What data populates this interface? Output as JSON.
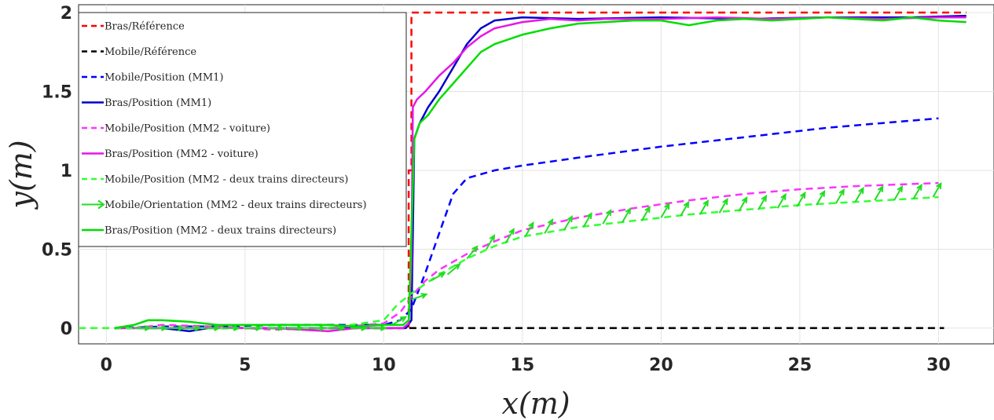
{
  "chart_data": {
    "type": "line",
    "title": "",
    "xlabel": "x(m)",
    "ylabel": "y(m)",
    "xlim": [
      -1,
      32
    ],
    "ylim": [
      -0.1,
      2.05
    ],
    "xticks": [
      0,
      5,
      10,
      15,
      20,
      25,
      30
    ],
    "yticks": [
      0,
      0.5,
      1,
      1.5,
      2
    ],
    "xtick_labels": [
      "0",
      "5",
      "10",
      "15",
      "20",
      "25",
      "30"
    ],
    "ytick_labels": [
      "0",
      "0.5",
      "1",
      "1.5",
      "2"
    ],
    "grid": true,
    "legend_position": "top-left",
    "series": [
      {
        "name": "Bras/Référence",
        "color": "#ff0000",
        "style": "dashed",
        "kind": "line",
        "x": [
          0.3,
          10.9,
          10.9,
          11.0,
          11.0,
          31.0
        ],
        "y": [
          0.0,
          0.0,
          1.0,
          1.0,
          2.0,
          2.0
        ]
      },
      {
        "name": "Mobile/Référence",
        "color": "#000000",
        "style": "dashed",
        "kind": "line",
        "x": [
          0.3,
          30.2
        ],
        "y": [
          0.0,
          0.0
        ]
      },
      {
        "name": "Mobile/Position (MM1)",
        "color": "#0000ff",
        "style": "dashed",
        "kind": "line",
        "x": [
          0.3,
          2,
          4,
          6,
          8,
          10,
          10.6,
          11.0,
          11.5,
          12.0,
          12.5,
          13.0,
          14,
          15,
          17,
          20,
          23,
          26,
          28,
          30
        ],
        "y": [
          0.0,
          0.01,
          0.01,
          0.02,
          0.02,
          0.02,
          0.05,
          0.12,
          0.35,
          0.6,
          0.85,
          0.95,
          1.0,
          1.03,
          1.08,
          1.15,
          1.21,
          1.27,
          1.3,
          1.33
        ]
      },
      {
        "name": "Bras/Position (MM1)",
        "color": "#0000cc",
        "style": "solid",
        "kind": "line",
        "x": [
          0.3,
          1.0,
          2.0,
          3.0,
          4.0,
          5.0,
          6,
          8,
          10,
          10.8,
          11.0,
          11.05,
          11.1,
          11.3,
          11.6,
          12.0,
          12.5,
          13.0,
          13.5,
          14,
          15,
          17,
          20,
          23,
          26,
          29,
          31
        ],
        "y": [
          0.0,
          0.0,
          0.0,
          -0.02,
          0.01,
          0.0,
          0.0,
          0.0,
          0.0,
          0.0,
          0.05,
          0.6,
          1.2,
          1.3,
          1.4,
          1.5,
          1.65,
          1.8,
          1.9,
          1.95,
          1.97,
          1.96,
          1.97,
          1.96,
          1.97,
          1.97,
          1.98
        ]
      },
      {
        "name": "Mobile/Position (MM2 - voiture)",
        "color": "#ff33ff",
        "style": "dashed",
        "kind": "line",
        "x": [
          1,
          2,
          4,
          6,
          8,
          10,
          10.6,
          11.0,
          11.5,
          12,
          13,
          14,
          15,
          17,
          19,
          21,
          23,
          25,
          27,
          30
        ],
        "y": [
          0.0,
          0.02,
          0.01,
          -0.01,
          0.0,
          0.03,
          0.1,
          0.2,
          0.3,
          0.37,
          0.47,
          0.55,
          0.62,
          0.7,
          0.76,
          0.81,
          0.85,
          0.88,
          0.9,
          0.92
        ]
      },
      {
        "name": "Bras/Position (MM2 - voiture)",
        "color": "#e617e6",
        "style": "solid",
        "kind": "line",
        "x": [
          0.3,
          1,
          2,
          3,
          4,
          5,
          6,
          7,
          8,
          9,
          10,
          10.7,
          10.9,
          11.0,
          11.05,
          11.2,
          11.5,
          12,
          12.5,
          13,
          13.5,
          14,
          15,
          16,
          17,
          18,
          20,
          22,
          24,
          26,
          28,
          30,
          31
        ],
        "y": [
          0.0,
          0.0,
          0.0,
          0.0,
          0.0,
          0.0,
          0.0,
          -0.01,
          -0.02,
          0.0,
          0.0,
          0.0,
          0.03,
          0.4,
          1.4,
          1.45,
          1.5,
          1.6,
          1.68,
          1.78,
          1.85,
          1.9,
          1.94,
          1.96,
          1.95,
          1.96,
          1.96,
          1.97,
          1.96,
          1.97,
          1.96,
          1.97,
          1.97
        ]
      },
      {
        "name": "Mobile/Position (MM2 - deux trains directeurs)",
        "color": "#33ff33",
        "style": "dashed",
        "kind": "line",
        "x": [
          -1,
          0,
          1,
          2,
          4,
          6,
          8,
          10,
          10.5,
          11,
          11.5,
          12,
          13,
          14,
          15,
          17,
          19,
          21,
          23,
          25,
          27,
          30
        ],
        "y": [
          0.0,
          0.0,
          0.0,
          0.0,
          0.0,
          0.0,
          0.0,
          0.05,
          0.15,
          0.22,
          0.28,
          0.34,
          0.44,
          0.52,
          0.58,
          0.64,
          0.68,
          0.72,
          0.75,
          0.78,
          0.8,
          0.83
        ]
      },
      {
        "name": "Mobile/Orientation (MM2 - deux trains directeurs)",
        "color": "#22dd22",
        "style": "arrows",
        "kind": "quiver",
        "x": [
          1,
          1.6,
          2.2,
          2.8,
          3.5,
          4.2,
          5,
          5.8,
          6.5,
          7.3,
          8,
          8.8,
          9.5,
          10.3,
          11,
          11.7,
          12.3,
          13,
          13.7,
          14.4,
          15.1,
          15.8,
          16.5,
          17.2,
          17.9,
          18.6,
          19.3,
          20,
          20.7,
          21.4,
          22.1,
          22.8,
          23.5,
          24.2,
          24.9,
          25.6,
          26.3,
          27,
          27.7,
          28.4,
          29.1,
          29.8
        ],
        "y": [
          0.0,
          0.0,
          0.0,
          0.0,
          0.0,
          0.0,
          0.0,
          0.0,
          0.0,
          0.0,
          0.0,
          0.0,
          0.0,
          0.02,
          0.18,
          0.3,
          0.34,
          0.44,
          0.5,
          0.54,
          0.58,
          0.6,
          0.62,
          0.64,
          0.66,
          0.67,
          0.68,
          0.7,
          0.71,
          0.72,
          0.73,
          0.74,
          0.75,
          0.76,
          0.77,
          0.78,
          0.79,
          0.8,
          0.81,
          0.81,
          0.82,
          0.83
        ],
        "angle_deg": [
          0,
          0,
          0,
          0,
          0,
          0,
          0,
          0,
          0,
          0,
          0,
          0,
          0,
          30,
          20,
          30,
          40,
          50,
          60,
          60,
          60,
          60,
          60,
          60,
          60,
          60,
          60,
          60,
          60,
          60,
          60,
          60,
          60,
          60,
          60,
          60,
          60,
          60,
          60,
          60,
          60,
          60
        ]
      },
      {
        "name": "Bras/Position (MM2 - deux trains directeurs)",
        "color": "#00dd00",
        "style": "solid",
        "kind": "line",
        "x": [
          0.3,
          1,
          1.5,
          2,
          3,
          4,
          5,
          6,
          7,
          8,
          9,
          10,
          10.7,
          10.9,
          11.0,
          11.1,
          11.3,
          11.6,
          12,
          12.5,
          13,
          13.5,
          14,
          15,
          16,
          17,
          18,
          19,
          20,
          21,
          22,
          23,
          24,
          25,
          26,
          27,
          28,
          29,
          30,
          31
        ],
        "y": [
          0.0,
          0.02,
          0.05,
          0.05,
          0.04,
          0.02,
          0.02,
          0.02,
          0.02,
          0.02,
          0.01,
          0.02,
          0.02,
          0.05,
          0.6,
          1.2,
          1.3,
          1.35,
          1.45,
          1.55,
          1.65,
          1.75,
          1.8,
          1.86,
          1.9,
          1.93,
          1.94,
          1.95,
          1.95,
          1.92,
          1.95,
          1.96,
          1.95,
          1.96,
          1.97,
          1.96,
          1.95,
          1.97,
          1.95,
          1.94
        ]
      }
    ]
  }
}
